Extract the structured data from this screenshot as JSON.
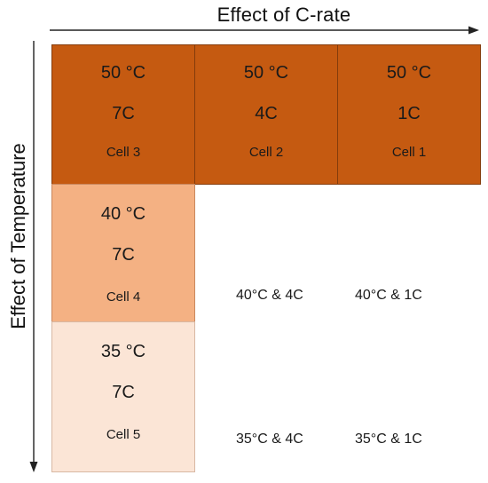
{
  "axes": {
    "x_title": "Effect of C-rate",
    "y_title": "Effect of Temperature"
  },
  "grid": {
    "row1": [
      {
        "temperature": "50 °C",
        "c_rate": "7C",
        "cell": "Cell 3"
      },
      {
        "temperature": "50 °C",
        "c_rate": "4C",
        "cell": "Cell 2"
      },
      {
        "temperature": "50 °C",
        "c_rate": "1C",
        "cell": "Cell  1"
      }
    ],
    "row2": {
      "tested": {
        "temperature": "40 °C",
        "c_rate": "7C",
        "cell": "Cell 4"
      },
      "untested": [
        "40°C & 4C",
        "40°C & 1C"
      ]
    },
    "row3": {
      "tested": {
        "temperature": "35 °C",
        "c_rate": "7C",
        "cell": "Cell 5"
      },
      "untested": [
        "35°C & 4C",
        "35°C & 1C"
      ]
    }
  },
  "colors": {
    "temp_50": "#c55a11",
    "temp_40": "#f4b183",
    "temp_35": "#fbe5d6"
  }
}
